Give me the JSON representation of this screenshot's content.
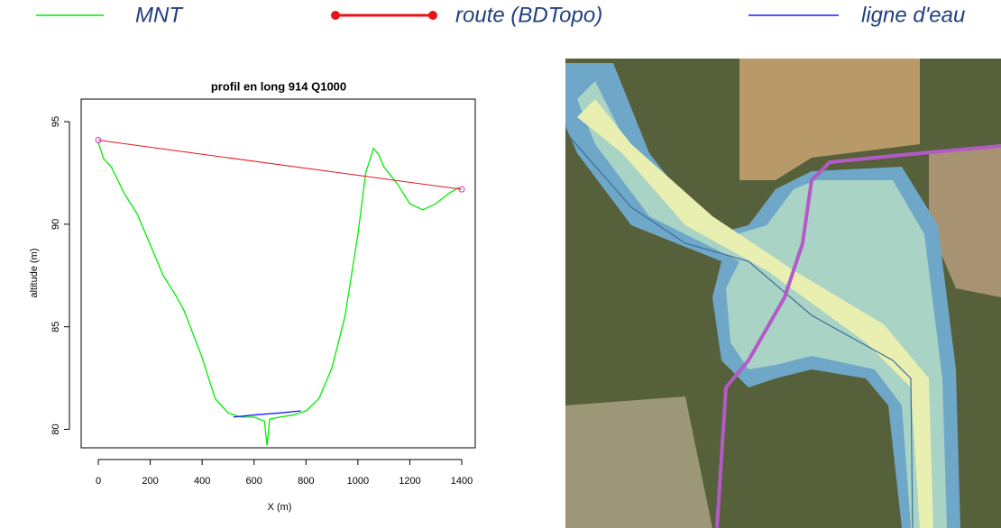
{
  "chart_data": {
    "type": "line",
    "title": "profil en long 914 Q1000",
    "xlabel": "X (m)",
    "ylabel": "altitude (m)",
    "xlim": [
      -66,
      1452
    ],
    "ylim": [
      79.1,
      96.1
    ],
    "xticks": [
      0,
      200,
      400,
      600,
      800,
      1000,
      1200,
      1400
    ],
    "yticks": [
      80,
      85,
      90,
      95
    ],
    "series": [
      {
        "name": "MNT",
        "color": "#00ee00",
        "x": [
          0,
          20,
          50,
          100,
          150,
          200,
          250,
          300,
          330,
          400,
          450,
          500,
          550,
          600,
          640,
          650,
          660,
          700,
          750,
          800,
          850,
          900,
          950,
          1000,
          1030,
          1060,
          1080,
          1100,
          1150,
          1200,
          1250,
          1300,
          1350,
          1390
        ],
        "values": [
          94.0,
          93.2,
          92.8,
          91.5,
          90.5,
          89.0,
          87.5,
          86.5,
          85.8,
          83.5,
          81.5,
          80.8,
          80.6,
          80.6,
          80.4,
          79.2,
          80.5,
          80.6,
          80.7,
          80.9,
          81.5,
          83.0,
          85.5,
          89.5,
          92.5,
          93.7,
          93.4,
          92.8,
          92.0,
          91.0,
          90.7,
          91.0,
          91.5,
          91.8
        ]
      },
      {
        "name": "route (BDTopo)",
        "color": "#e8141a",
        "x": [
          0,
          1400
        ],
        "values": [
          94.1,
          91.7
        ]
      },
      {
        "name": "ligne d'eau",
        "color": "#1a1aff",
        "x": [
          520,
          600,
          700,
          780
        ],
        "values": [
          80.6,
          80.7,
          80.8,
          80.9
        ]
      }
    ]
  }
}
